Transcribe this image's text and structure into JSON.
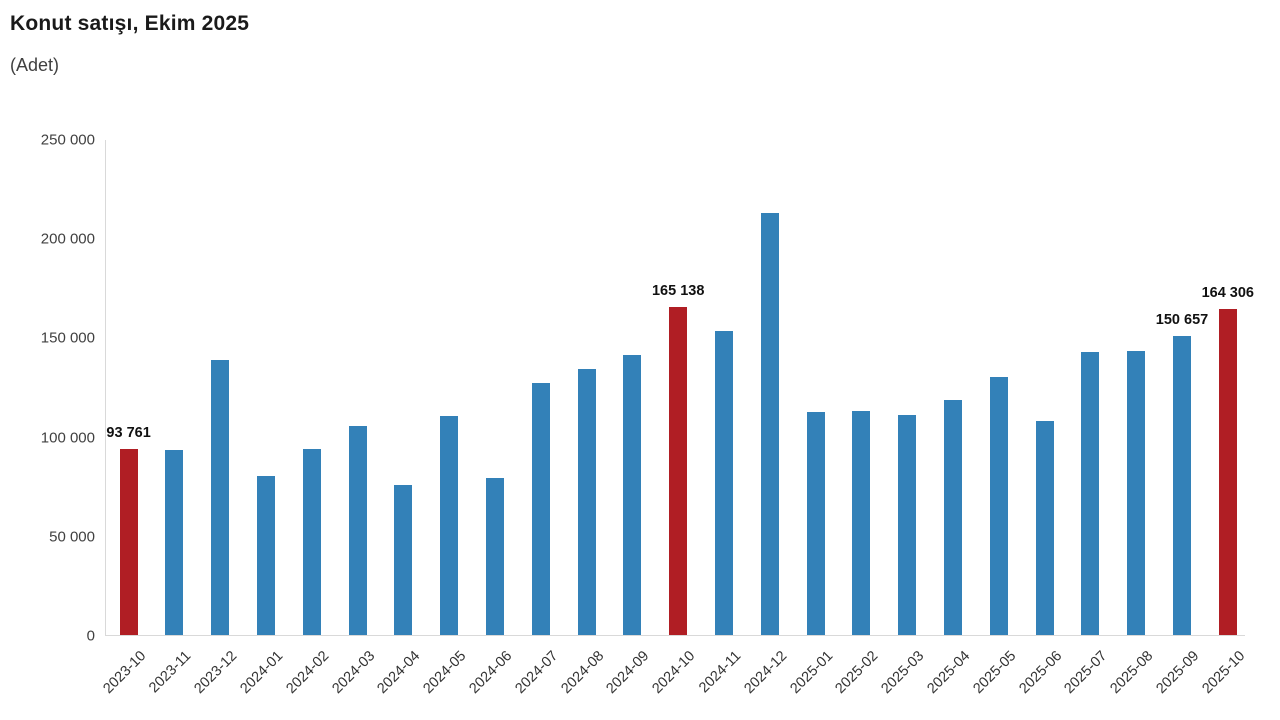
{
  "page": {
    "title": "Konut satışı, Ekim 2025",
    "subtitle": "(Adet)"
  },
  "colors": {
    "bar_default": "#3381b8",
    "bar_highlight": "#b01e24",
    "axis_line": "#d9d9d9",
    "tick_text": "#404040",
    "data_label_text": "#111111"
  },
  "chart_data": {
    "type": "bar",
    "title": "Konut satışı, Ekim 2025",
    "unit_label": "(Adet)",
    "xlabel": "",
    "ylabel": "",
    "ylim": [
      0,
      250000
    ],
    "ytick_values": [
      0,
      50000,
      100000,
      150000,
      200000,
      250000
    ],
    "ytick_labels": [
      "0",
      "50 000",
      "100 000",
      "150 000",
      "200 000",
      "250 000"
    ],
    "grid": false,
    "legend": false,
    "categories": [
      "2023-10",
      "2023-11",
      "2023-12",
      "2024-01",
      "2024-02",
      "2024-03",
      "2024-04",
      "2024-05",
      "2024-06",
      "2024-07",
      "2024-08",
      "2024-09",
      "2024-10",
      "2024-11",
      "2024-12",
      "2025-01",
      "2025-02",
      "2025-03",
      "2025-04",
      "2025-05",
      "2025-06",
      "2025-07",
      "2025-08",
      "2025-09",
      "2025-10"
    ],
    "values": [
      93761,
      93178,
      138577,
      80308,
      93902,
      105476,
      75569,
      110588,
      79313,
      127088,
      134155,
      140919,
      165138,
      153014,
      212637,
      112173,
      112818,
      110795,
      118359,
      130025,
      107723,
      142858,
      143319,
      150657,
      164306
    ],
    "highlighted_categories": [
      "2023-10",
      "2024-10",
      "2025-10"
    ],
    "data_labels": [
      {
        "category": "2023-10",
        "text": "93 761"
      },
      {
        "category": "2024-10",
        "text": "165 138"
      },
      {
        "category": "2025-09",
        "text": "150 657"
      },
      {
        "category": "2025-10",
        "text": "164 306"
      }
    ]
  }
}
